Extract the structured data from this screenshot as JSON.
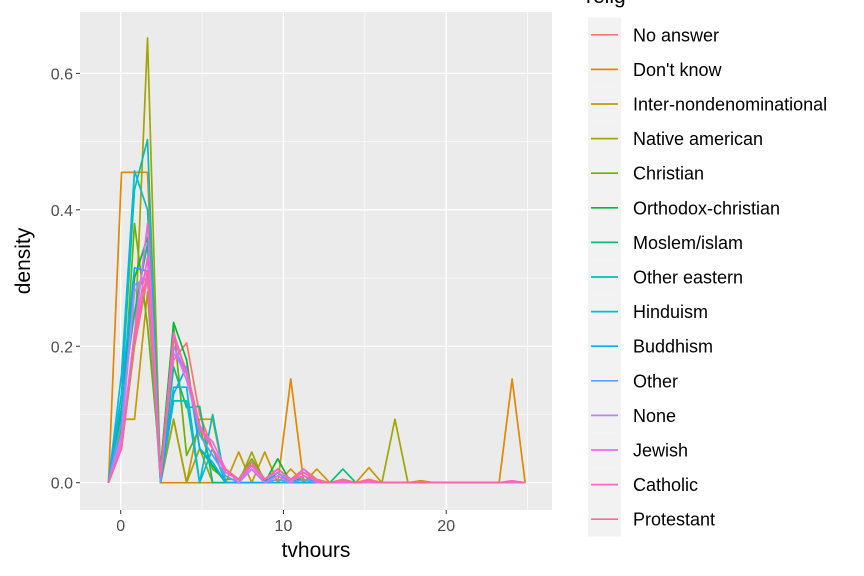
{
  "chart_data": {
    "type": "line",
    "xlabel": "tvhours",
    "ylabel": "density",
    "xlim": [
      -2.5,
      26.5
    ],
    "ylim": [
      -0.04,
      0.69
    ],
    "x_ticks": [
      0,
      10,
      20
    ],
    "x_tick_labels": [
      "0",
      "10",
      "20"
    ],
    "y_ticks": [
      0.0,
      0.2,
      0.4,
      0.6
    ],
    "y_tick_labels": [
      "0.0",
      "0.2",
      "0.4",
      "0.6"
    ],
    "grid": true,
    "legend_position": "right",
    "legend_title": "relig",
    "x": [
      -0.75,
      0.05,
      0.85,
      1.65,
      2.45,
      3.25,
      4.05,
      4.85,
      5.65,
      6.45,
      7.25,
      8.05,
      8.85,
      9.65,
      10.45,
      11.25,
      12.05,
      12.85,
      13.65,
      14.45,
      15.25,
      16.05,
      16.85,
      17.65,
      18.45,
      19.25,
      20.05,
      20.85,
      21.65,
      22.45,
      23.25,
      24.05,
      24.85
    ],
    "series": [
      {
        "name": "No answer",
        "color": "#F8766D",
        "values": [
          0,
          0.06,
          0.2,
          0.3,
          0.02,
          0.18,
          0.205,
          0.1,
          0.05,
          0.015,
          0.005,
          0.025,
          0.005,
          0.02,
          0.005,
          0.02,
          0.005,
          0,
          0.005,
          0,
          0.005,
          0,
          0,
          0,
          0,
          0,
          0,
          0,
          0,
          0,
          0,
          0.002,
          0
        ]
      },
      {
        "name": "Don't know",
        "color": "#E58700",
        "values": [
          0,
          0.455,
          0.455,
          0.455,
          0,
          0,
          0,
          0,
          0,
          0,
          0,
          0,
          0,
          0,
          0.152,
          0,
          0,
          0,
          0,
          0,
          0,
          0,
          0,
          0,
          0,
          0,
          0,
          0,
          0,
          0,
          0,
          0.152,
          0
        ]
      },
      {
        "name": "Inter-nondenominational",
        "color": "#C99800",
        "values": [
          0,
          0.093,
          0.093,
          0.28,
          0,
          0.093,
          0,
          0.093,
          0.093,
          0,
          0.045,
          0,
          0.045,
          0,
          0.02,
          0,
          0.02,
          0,
          0,
          0,
          0.022,
          0,
          0,
          0,
          0.003,
          0,
          0,
          0,
          0,
          0,
          0,
          0,
          0
        ]
      },
      {
        "name": "Native american",
        "color": "#A3A500",
        "values": [
          0,
          0.05,
          0.2,
          0.652,
          0,
          0.093,
          0,
          0.05,
          0,
          0,
          0,
          0.045,
          0,
          0,
          0,
          0,
          0,
          0,
          0,
          0,
          0,
          0,
          0.093,
          0,
          0,
          0,
          0,
          0,
          0,
          0,
          0,
          0,
          0
        ]
      },
      {
        "name": "Christian",
        "color": "#6BB100",
        "values": [
          0,
          0.08,
          0.38,
          0.23,
          0.02,
          0.23,
          0.04,
          0.08,
          0.02,
          0.005,
          0.005,
          0.035,
          0.005,
          0.02,
          0.005,
          0.005,
          0,
          0,
          0,
          0,
          0,
          0,
          0,
          0,
          0,
          0,
          0,
          0,
          0,
          0,
          0,
          0,
          0
        ]
      },
      {
        "name": "Orthodox-christian",
        "color": "#00BA38",
        "values": [
          0,
          0.1,
          0.3,
          0.36,
          0.02,
          0.235,
          0.18,
          0.05,
          0.025,
          0,
          0,
          0.03,
          0,
          0.035,
          0,
          0.01,
          0,
          0,
          0,
          0,
          0,
          0,
          0,
          0,
          0,
          0,
          0,
          0,
          0,
          0,
          0,
          0,
          0
        ]
      },
      {
        "name": "Moslem/islam",
        "color": "#00BF7D",
        "values": [
          0,
          0.11,
          0.25,
          0.35,
          0,
          0.17,
          0.11,
          0.112,
          0,
          0,
          0,
          0.02,
          0,
          0.015,
          0,
          0,
          0,
          0,
          0.02,
          0,
          0,
          0,
          0,
          0,
          0,
          0,
          0,
          0,
          0,
          0,
          0,
          0,
          0
        ]
      },
      {
        "name": "Other eastern",
        "color": "#00C0B8",
        "values": [
          0,
          0.13,
          0.43,
          0.503,
          0,
          0.12,
          0.12,
          0,
          0.1,
          0,
          0,
          0,
          0,
          0,
          0,
          0,
          0,
          0,
          0,
          0,
          0,
          0,
          0,
          0,
          0,
          0,
          0,
          0,
          0,
          0,
          0,
          0,
          0
        ]
      },
      {
        "name": "Hinduism",
        "color": "#00BCD8",
        "values": [
          0,
          0.16,
          0.457,
          0.4,
          0,
          0.14,
          0.14,
          0,
          0.05,
          0,
          0,
          0,
          0,
          0,
          0,
          0,
          0,
          0,
          0,
          0,
          0,
          0,
          0,
          0,
          0,
          0,
          0,
          0,
          0,
          0,
          0,
          0,
          0
        ]
      },
      {
        "name": "Buddhism",
        "color": "#00B0F6",
        "values": [
          0,
          0.13,
          0.315,
          0.31,
          0,
          0.13,
          0.17,
          0.05,
          0.03,
          0,
          0,
          0,
          0,
          0.015,
          0,
          0,
          0,
          0,
          0,
          0,
          0,
          0,
          0,
          0,
          0,
          0,
          0,
          0,
          0,
          0,
          0,
          0,
          0
        ]
      },
      {
        "name": "Other",
        "color": "#619CFF",
        "values": [
          0,
          0.09,
          0.29,
          0.3,
          0,
          0.2,
          0.16,
          0.07,
          0.04,
          0.01,
          0,
          0.02,
          0,
          0.005,
          0,
          0.005,
          0,
          0,
          0,
          0,
          0,
          0,
          0,
          0,
          0,
          0,
          0,
          0,
          0,
          0,
          0,
          0,
          0
        ]
      },
      {
        "name": "None",
        "color": "#B983FF",
        "values": [
          0,
          0.07,
          0.28,
          0.31,
          0.01,
          0.2,
          0.15,
          0.08,
          0.05,
          0.015,
          0.005,
          0.02,
          0.005,
          0.015,
          0.003,
          0.01,
          0.002,
          0,
          0.002,
          0,
          0.002,
          0,
          0,
          0,
          0,
          0,
          0,
          0,
          0,
          0,
          0,
          0.001,
          0
        ]
      },
      {
        "name": "Jewish",
        "color": "#E76BF3",
        "values": [
          0,
          0.06,
          0.22,
          0.38,
          0.01,
          0.19,
          0.16,
          0.08,
          0.06,
          0.02,
          0,
          0.02,
          0,
          0.01,
          0,
          0.02,
          0,
          0,
          0,
          0,
          0,
          0,
          0,
          0,
          0,
          0,
          0,
          0,
          0,
          0,
          0,
          0,
          0
        ]
      },
      {
        "name": "Catholic",
        "color": "#FD61D1",
        "values": [
          0,
          0.05,
          0.22,
          0.33,
          0.01,
          0.22,
          0.16,
          0.08,
          0.05,
          0.015,
          0.005,
          0.025,
          0.005,
          0.02,
          0.005,
          0.01,
          0.002,
          0,
          0.003,
          0,
          0.003,
          0,
          0,
          0,
          0,
          0,
          0,
          0,
          0,
          0,
          0,
          0.003,
          0
        ]
      },
      {
        "name": "Protestant",
        "color": "#FF67A4",
        "values": [
          0,
          0.05,
          0.21,
          0.31,
          0.01,
          0.21,
          0.165,
          0.085,
          0.05,
          0.02,
          0.005,
          0.03,
          0.005,
          0.02,
          0.005,
          0.015,
          0.003,
          0,
          0.003,
          0,
          0.003,
          0,
          0,
          0,
          0,
          0,
          0,
          0,
          0,
          0,
          0,
          0.002,
          0
        ]
      }
    ]
  }
}
